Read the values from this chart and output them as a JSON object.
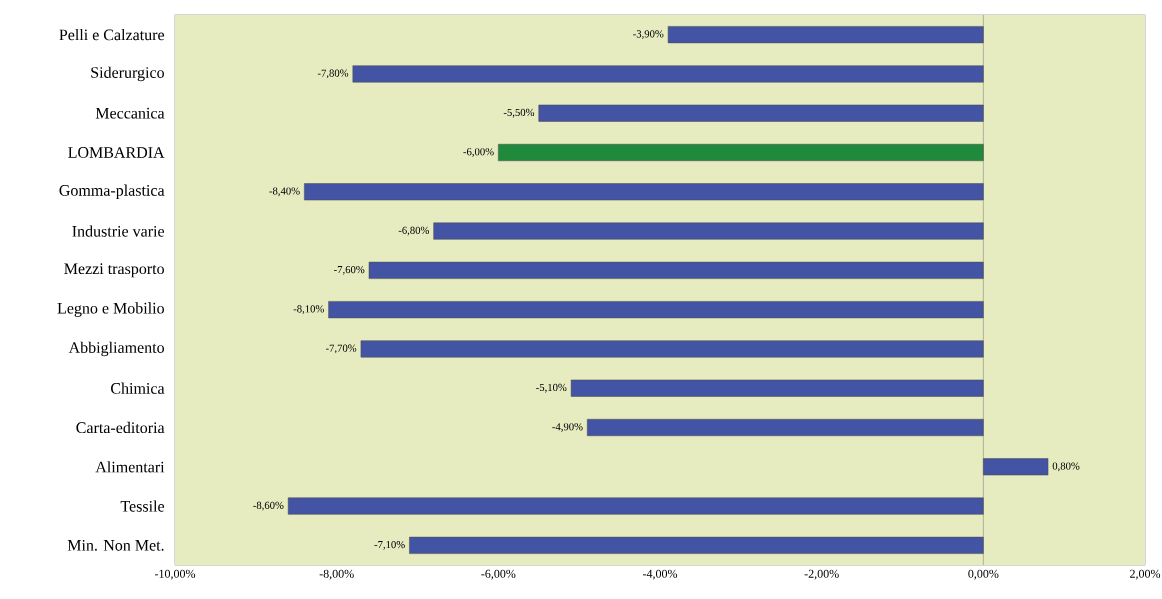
{
  "chart_data": {
    "type": "bar",
    "orientation": "horizontal",
    "categories": [
      "Pelli e Calzature",
      "Siderurgico",
      "Meccanica",
      "LOMBARDIA",
      "Gomma-plastica",
      "Industrie varie",
      "Mezzi trasporto",
      "Legno e Mobilio",
      "Abbigliamento",
      "Chimica",
      "Carta-editoria",
      "Alimentari",
      "Tessile",
      "Min. Non Met."
    ],
    "values": [
      -3.9,
      -7.8,
      -5.5,
      -6.0,
      -8.4,
      -6.8,
      -7.6,
      -8.1,
      -7.7,
      -5.1,
      -4.9,
      0.8,
      -8.6,
      -7.1
    ],
    "value_labels": [
      "-3,90%",
      "-7,80%",
      "-5,50%",
      "-6,00%",
      "-8,40%",
      "-6,80%",
      "-7,60%",
      "-8,10%",
      "-7,70%",
      "-5,10%",
      "-4,90%",
      "0,80%",
      "-8,60%",
      "-7,10%"
    ],
    "colors": [
      "#4454a4",
      "#4454a4",
      "#4454a4",
      "#1f8a3c",
      "#4454a4",
      "#4454a4",
      "#4454a4",
      "#4454a4",
      "#4454a4",
      "#4454a4",
      "#4454a4",
      "#4454a4",
      "#4454a4",
      "#4454a4"
    ],
    "xlim": [
      -10,
      2
    ],
    "xticks": [
      {
        "value": -10,
        "label": "-10,00%"
      },
      {
        "value": -8,
        "label": "-8,00%"
      },
      {
        "value": -6,
        "label": "-6,00%"
      },
      {
        "value": -4,
        "label": "-4,00%"
      },
      {
        "value": -2,
        "label": "-2,00%"
      },
      {
        "value": 0,
        "label": "0,00%"
      },
      {
        "value": 2,
        "label": "2,00%"
      }
    ],
    "ref_lines": [
      {
        "axis": "x",
        "value": 0
      }
    ],
    "grid": false
  }
}
